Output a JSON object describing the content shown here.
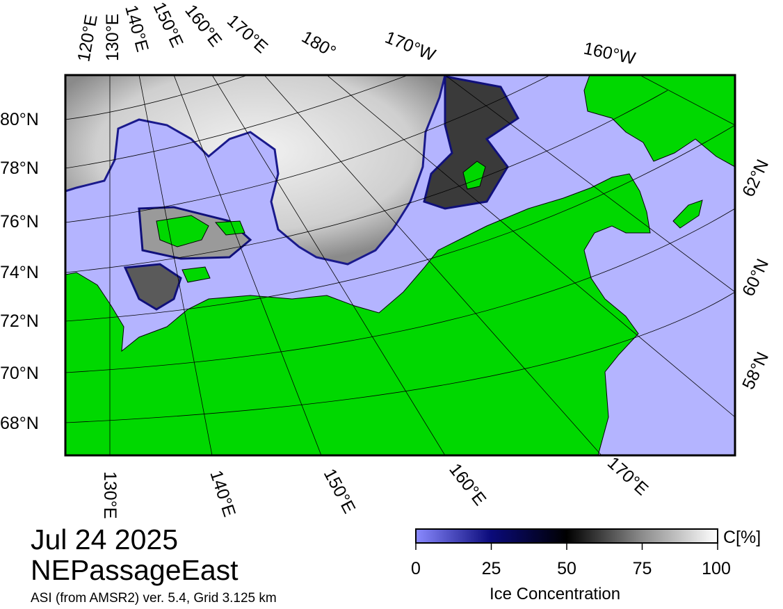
{
  "map": {
    "date": "Jul 24 2025",
    "region": "NEPassageEast",
    "product": "ASI (from AMSR2) ver. 5.4,  Grid 3.125 km",
    "top_lon_labels": [
      "120°E",
      "130°E",
      "140°E",
      "150°E",
      "160°E",
      "170°E",
      "180°",
      "170°W",
      "160°W"
    ],
    "bottom_lon_labels": [
      "130°E",
      "140°E",
      "150°E",
      "160°E",
      "170°E"
    ],
    "left_lat_labels": [
      "80°N",
      "78°N",
      "76°N",
      "74°N",
      "72°N",
      "70°N",
      "68°N"
    ],
    "right_lat_labels": [
      "62°N",
      "60°N",
      "58°N"
    ],
    "colors": {
      "land": "#00d800",
      "open_water": "#b4b4ff",
      "ice_high": "#ffffff",
      "ice_mid": "#000000",
      "ice_low": "#6666ff"
    }
  },
  "colorbar": {
    "unit_label": "C[%]",
    "title": "Ice Concentration",
    "ticks": [
      "0",
      "25",
      "50",
      "75",
      "100"
    ],
    "range": [
      0,
      100
    ]
  }
}
